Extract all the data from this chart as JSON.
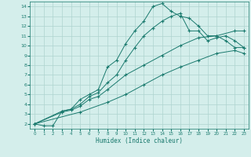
{
  "xlabel": "Humidex (Indice chaleur)",
  "ylabel": "",
  "xlim": [
    -0.5,
    23.5
  ],
  "ylim": [
    1.5,
    14.5
  ],
  "yticks": [
    2,
    3,
    4,
    5,
    6,
    7,
    8,
    9,
    10,
    11,
    12,
    13,
    14
  ],
  "xticks": [
    0,
    1,
    2,
    3,
    4,
    5,
    6,
    7,
    8,
    9,
    10,
    11,
    12,
    13,
    14,
    15,
    16,
    17,
    18,
    19,
    20,
    21,
    22,
    23
  ],
  "line_color": "#1a7a6e",
  "bg_color": "#d4eeeb",
  "grid_color": "#aed4cf",
  "lines": [
    {
      "x": [
        0,
        1,
        2,
        3,
        4,
        5,
        6,
        7,
        8,
        9,
        10,
        11,
        12,
        13,
        14,
        15,
        16,
        17,
        18,
        19,
        20,
        21,
        22,
        23
      ],
      "y": [
        2,
        1.8,
        1.8,
        3.3,
        3.5,
        4.5,
        5.0,
        5.5,
        7.8,
        8.5,
        10.2,
        11.5,
        12.5,
        14.0,
        14.3,
        13.5,
        13.0,
        12.8,
        12.0,
        11.0,
        11.0,
        10.5,
        9.8,
        9.8
      ]
    },
    {
      "x": [
        0,
        3,
        4,
        5,
        6,
        7,
        8,
        9,
        10,
        11,
        12,
        13,
        14,
        15,
        16,
        17,
        18,
        19,
        20,
        21,
        22,
        23
      ],
      "y": [
        2,
        3.3,
        3.5,
        4.0,
        4.8,
        5.2,
        6.2,
        7.0,
        8.5,
        9.8,
        11.0,
        11.8,
        12.5,
        13.0,
        13.3,
        11.5,
        11.5,
        10.5,
        10.8,
        11.0,
        10.5,
        9.8
      ]
    },
    {
      "x": [
        0,
        3,
        4,
        5,
        6,
        7,
        8,
        10,
        12,
        14,
        16,
        18,
        20,
        22,
        23
      ],
      "y": [
        2,
        3.2,
        3.4,
        3.8,
        4.5,
        4.8,
        5.5,
        7.0,
        8.0,
        9.0,
        10.0,
        10.8,
        11.0,
        11.5,
        11.5
      ]
    },
    {
      "x": [
        0,
        5,
        8,
        10,
        12,
        14,
        16,
        18,
        20,
        22,
        23
      ],
      "y": [
        2,
        3.2,
        4.2,
        5.0,
        6.0,
        7.0,
        7.8,
        8.5,
        9.2,
        9.5,
        9.2
      ]
    }
  ]
}
